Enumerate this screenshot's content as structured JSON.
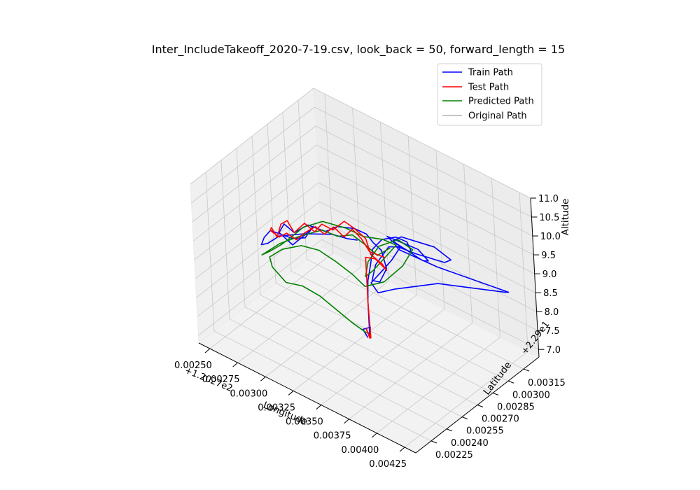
{
  "chart_data": {
    "type": "line",
    "projection": "3d",
    "title": "Inter_IncludeTakeoff_2020-7-19.csv, look_back = 50, forward_length = 15",
    "xlabel": "Longitude",
    "ylabel": "Latitude",
    "zlabel": "Altitude",
    "x_offset_text": "+1.2027e2",
    "y_offset_text": "+2.29e1",
    "xlim": [
      0.0024,
      0.00435
    ],
    "ylim": [
      0.0021,
      0.0033
    ],
    "zlim": [
      6.8,
      11.0
    ],
    "x_ticks": [
      "0.00250",
      "0.00275",
      "0.00300",
      "0.00325",
      "0.00350",
      "0.00375",
      "0.00400",
      "0.00425"
    ],
    "y_ticks": [
      "0.00225",
      "0.00240",
      "0.00255",
      "0.00270",
      "0.00285",
      "0.00300",
      "0.00315"
    ],
    "z_ticks": [
      "7.0",
      "7.5",
      "8.0",
      "8.5",
      "9.0",
      "9.5",
      "10.0",
      "10.5",
      "11.0"
    ],
    "grid": true,
    "legend_position": "upper right",
    "legend": [
      "Train Path",
      "Test Path",
      "Predicted Path",
      "Original Path"
    ],
    "series": [
      {
        "name": "Train Path",
        "color": "#0000ff",
        "points": [
          [
            0.00335,
            0.00272,
            7.06
          ],
          [
            0.00333,
            0.0027,
            7.28
          ],
          [
            0.00337,
            0.00273,
            7.33
          ],
          [
            0.00337,
            0.00272,
            7.1
          ],
          [
            0.00337,
            0.00272,
            8.05
          ],
          [
            0.00338,
            0.00272,
            8.6
          ],
          [
            0.0034,
            0.00273,
            9.0
          ],
          [
            0.00342,
            0.00274,
            9.45
          ],
          [
            0.0035,
            0.00275,
            9.8
          ],
          [
            0.0036,
            0.00278,
            9.95
          ],
          [
            0.00368,
            0.0028,
            9.9
          ],
          [
            0.0037,
            0.00282,
            9.6
          ],
          [
            0.00362,
            0.00285,
            9.5
          ],
          [
            0.00352,
            0.00283,
            9.6
          ],
          [
            0.00352,
            0.00278,
            9.85
          ],
          [
            0.00365,
            0.00276,
            9.95
          ],
          [
            0.00378,
            0.0028,
            9.85
          ],
          [
            0.00382,
            0.00285,
            9.5
          ],
          [
            0.00372,
            0.0029,
            9.25
          ],
          [
            0.00358,
            0.00289,
            9.35
          ],
          [
            0.0035,
            0.00285,
            9.55
          ],
          [
            0.0036,
            0.00283,
            9.85
          ],
          [
            0.00385,
            0.00288,
            9.85
          ],
          [
            0.00395,
            0.00293,
            9.55
          ],
          [
            0.00385,
            0.00297,
            9.25
          ],
          [
            0.00362,
            0.00294,
            9.2
          ],
          [
            0.0035,
            0.00288,
            9.35
          ],
          [
            0.00355,
            0.00285,
            9.4
          ],
          [
            0.0038,
            0.00295,
            9.1
          ],
          [
            0.0042,
            0.0032,
            8.5
          ],
          [
            0.00415,
            0.00322,
            8.38
          ],
          [
            0.0037,
            0.00305,
            8.3
          ],
          [
            0.00345,
            0.0029,
            8.1
          ],
          [
            0.00337,
            0.00282,
            8.05
          ],
          [
            0.00333,
            0.0028,
            8.3
          ],
          [
            0.00338,
            0.00284,
            8.55
          ],
          [
            0.00345,
            0.00288,
            8.9
          ],
          [
            0.0035,
            0.00292,
            9.25
          ],
          [
            0.00345,
            0.00286,
            9.3
          ],
          [
            0.00338,
            0.0028,
            8.85
          ],
          [
            0.00336,
            0.00278,
            8.45
          ],
          [
            0.0034,
            0.00281,
            8.4
          ],
          [
            0.00344,
            0.00284,
            8.75
          ],
          [
            0.00342,
            0.00282,
            9.25
          ],
          [
            0.00338,
            0.00279,
            9.45
          ],
          [
            0.00335,
            0.00276,
            9.7
          ],
          [
            0.0033,
            0.0027,
            9.9
          ],
          [
            0.00322,
            0.00262,
            10.0
          ],
          [
            0.00315,
            0.00258,
            9.85
          ],
          [
            0.00305,
            0.00252,
            10.0
          ],
          [
            0.00296,
            0.00248,
            9.75
          ],
          [
            0.0029,
            0.00245,
            9.95
          ],
          [
            0.00285,
            0.00245,
            9.65
          ],
          [
            0.0029,
            0.00252,
            9.25
          ],
          [
            0.00298,
            0.00256,
            9.55
          ],
          [
            0.00302,
            0.0026,
            9.75
          ],
          [
            0.00296,
            0.00258,
            9.4
          ],
          [
            0.00288,
            0.00254,
            9.35
          ],
          [
            0.00276,
            0.00246,
            9.55
          ],
          [
            0.00272,
            0.00244,
            9.35
          ],
          [
            0.0027,
            0.00243,
            9.15
          ],
          [
            0.00274,
            0.00245,
            9.2
          ],
          [
            0.00282,
            0.00248,
            9.45
          ],
          [
            0.00298,
            0.00255,
            9.6
          ],
          [
            0.00315,
            0.00264,
            9.65
          ],
          [
            0.00325,
            0.00268,
            9.6
          ],
          [
            0.0033,
            0.00272,
            9.55
          ]
        ]
      },
      {
        "name": "Test Path",
        "color": "#ff0000",
        "points": [
          [
            0.00337,
            0.00272,
            7.06
          ],
          [
            0.00335,
            0.00271,
            7.3
          ],
          [
            0.00337,
            0.00273,
            7.05
          ],
          [
            0.00337,
            0.00272,
            8.0
          ],
          [
            0.00337,
            0.00272,
            9.2
          ],
          [
            0.00342,
            0.00276,
            9.15
          ],
          [
            0.00348,
            0.0028,
            8.85
          ],
          [
            0.00345,
            0.00279,
            9.0
          ],
          [
            0.00338,
            0.00276,
            9.2
          ],
          [
            0.00335,
            0.00275,
            9.6
          ],
          [
            0.0033,
            0.0027,
            9.9
          ],
          [
            0.00325,
            0.00266,
            10.1
          ],
          [
            0.00318,
            0.00262,
            9.85
          ],
          [
            0.00312,
            0.00258,
            10.0
          ],
          [
            0.00308,
            0.00255,
            9.8
          ],
          [
            0.00302,
            0.00252,
            10.0
          ],
          [
            0.00296,
            0.00248,
            9.75
          ],
          [
            0.00292,
            0.00246,
            10.05
          ],
          [
            0.00287,
            0.00245,
            9.9
          ],
          [
            0.00283,
            0.00245,
            9.5
          ],
          [
            0.0028,
            0.00243,
            9.75
          ],
          [
            0.00276,
            0.00246,
            9.55
          ],
          [
            0.0028,
            0.0025,
            9.35
          ],
          [
            0.00284,
            0.00253,
            9.45
          ],
          [
            0.0029,
            0.00256,
            9.3
          ],
          [
            0.00295,
            0.00259,
            9.5
          ],
          [
            0.00302,
            0.00262,
            9.7
          ],
          [
            0.00308,
            0.00264,
            9.55
          ],
          [
            0.00315,
            0.00266,
            9.8
          ],
          [
            0.00322,
            0.00268,
            9.6
          ],
          [
            0.00328,
            0.0027,
            9.85
          ],
          [
            0.00334,
            0.00272,
            9.65
          ],
          [
            0.00338,
            0.00275,
            9.3
          ],
          [
            0.00345,
            0.00282,
            9.1
          ]
        ]
      },
      {
        "name": "Predicted Path",
        "color": "#008000",
        "points": [
          [
            0.00335,
            0.00271,
            7.2
          ],
          [
            0.00328,
            0.00266,
            7.45
          ],
          [
            0.0032,
            0.0026,
            7.8
          ],
          [
            0.00312,
            0.00253,
            8.2
          ],
          [
            0.00302,
            0.00247,
            8.45
          ],
          [
            0.00292,
            0.00242,
            8.5
          ],
          [
            0.00282,
            0.0024,
            8.8
          ],
          [
            0.00279,
            0.00241,
            9.0
          ],
          [
            0.00286,
            0.00246,
            9.2
          ],
          [
            0.00298,
            0.00252,
            9.35
          ],
          [
            0.00308,
            0.00258,
            9.25
          ],
          [
            0.00318,
            0.00263,
            9.0
          ],
          [
            0.00328,
            0.00268,
            8.7
          ],
          [
            0.00335,
            0.00272,
            8.4
          ],
          [
            0.00345,
            0.0028,
            8.5
          ],
          [
            0.00355,
            0.00288,
            8.9
          ],
          [
            0.0036,
            0.00293,
            9.3
          ],
          [
            0.00352,
            0.00288,
            9.55
          ],
          [
            0.00342,
            0.0028,
            9.4
          ],
          [
            0.00336,
            0.00275,
            9.0
          ],
          [
            0.00334,
            0.00274,
            8.6
          ],
          [
            0.00338,
            0.00277,
            8.75
          ],
          [
            0.00345,
            0.00282,
            9.1
          ],
          [
            0.00352,
            0.00286,
            9.45
          ],
          [
            0.00345,
            0.00281,
            9.6
          ],
          [
            0.00335,
            0.00273,
            9.7
          ],
          [
            0.00325,
            0.00267,
            9.9
          ],
          [
            0.00312,
            0.00259,
            10.05
          ],
          [
            0.003,
            0.00253,
            9.85
          ],
          [
            0.00292,
            0.00249,
            9.55
          ],
          [
            0.00285,
            0.00247,
            9.3
          ],
          [
            0.00278,
            0.00243,
            9.1
          ],
          [
            0.00272,
            0.00241,
            8.95
          ],
          [
            0.00282,
            0.00248,
            9.25
          ],
          [
            0.00295,
            0.00255,
            9.5
          ],
          [
            0.00308,
            0.00262,
            9.7
          ],
          [
            0.00318,
            0.00266,
            9.6
          ],
          [
            0.00328,
            0.0027,
            9.7
          ],
          [
            0.00336,
            0.00273,
            9.5
          ],
          [
            0.00342,
            0.00278,
            9.2
          ],
          [
            0.00348,
            0.00284,
            9.35
          ]
        ]
      },
      {
        "name": "Original Path",
        "color": "#b0b0b0",
        "points": []
      }
    ]
  }
}
